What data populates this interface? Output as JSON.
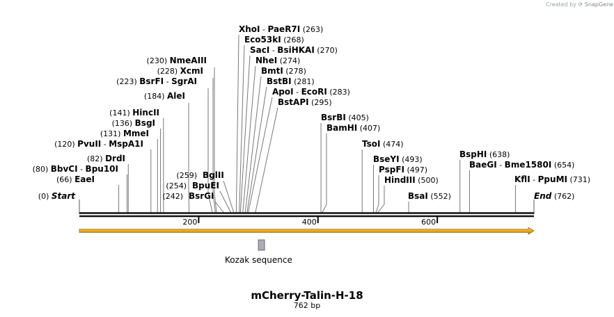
{
  "credit": {
    "prefix": "Created by",
    "brand": "SnapGene"
  },
  "construct": {
    "name": "mCherry-Talin-H-18",
    "size": "762 bp",
    "length": 762
  },
  "ends": {
    "start": {
      "name": "Start",
      "pos": "(0)"
    },
    "end": {
      "name": "End",
      "pos": "(762)"
    }
  },
  "ruler": {
    "ticks": [
      200,
      400,
      600
    ]
  },
  "feature": {
    "label": "Kozak sequence",
    "start": 300,
    "end": 310
  },
  "cds": {
    "start": 0,
    "end": 762,
    "color": "#f0b429"
  },
  "enzymes_left": [
    {
      "bp": 66,
      "pos": "(66)",
      "names": [
        "EaeI"
      ]
    },
    {
      "bp": 80,
      "pos": "(80)",
      "names": [
        "BbvCI",
        "Bpu10I"
      ]
    },
    {
      "bp": 82,
      "pos": "(82)",
      "names": [
        "DrdI"
      ]
    },
    {
      "bp": 120,
      "pos": "(120)",
      "names": [
        "PvuII",
        "MspA1I"
      ]
    },
    {
      "bp": 131,
      "pos": "(131)",
      "names": [
        "MmeI"
      ]
    },
    {
      "bp": 136,
      "pos": "(136)",
      "names": [
        "BsgI"
      ]
    },
    {
      "bp": 141,
      "pos": "(141)",
      "names": [
        "HincII"
      ]
    },
    {
      "bp": 184,
      "pos": "(184)",
      "names": [
        "AleI"
      ]
    },
    {
      "bp": 223,
      "pos": "(223)",
      "names": [
        "BsrFI",
        "SgrAI"
      ]
    },
    {
      "bp": 228,
      "pos": "(228)",
      "names": [
        "XcmI"
      ]
    },
    {
      "bp": 230,
      "pos": "(230)",
      "names": [
        "NmeAIII"
      ]
    }
  ],
  "enzymes_mid": [
    {
      "bp": 242,
      "pos": "(242)",
      "names": [
        "BsrGI"
      ]
    },
    {
      "bp": 254,
      "pos": "(254)",
      "names": [
        "BpuEI"
      ]
    },
    {
      "bp": 259,
      "pos": "(259)",
      "names": [
        "BglII"
      ]
    }
  ],
  "enzymes_stack": [
    {
      "bp": 263,
      "pos": "(263)",
      "names": [
        "XhoI",
        "PaeR7I"
      ]
    },
    {
      "bp": 268,
      "pos": "(268)",
      "names": [
        "Eco53kI"
      ]
    },
    {
      "bp": 270,
      "pos": "(270)",
      "names": [
        "SacI",
        "BsiHKAI"
      ]
    },
    {
      "bp": 274,
      "pos": "(274)",
      "names": [
        "NheI"
      ]
    },
    {
      "bp": 278,
      "pos": "(278)",
      "names": [
        "BmtI"
      ]
    },
    {
      "bp": 281,
      "pos": "(281)",
      "names": [
        "BstBI"
      ]
    },
    {
      "bp": 283,
      "pos": "(283)",
      "names": [
        "ApoI",
        "EcoRI"
      ]
    },
    {
      "bp": 295,
      "pos": "(295)",
      "names": [
        "BstAPI"
      ]
    }
  ],
  "enzymes_right": [
    {
      "bp": 405,
      "pos": "(405)",
      "names": [
        "BsrBI"
      ]
    },
    {
      "bp": 407,
      "pos": "(407)",
      "names": [
        "BamHI"
      ]
    },
    {
      "bp": 474,
      "pos": "(474)",
      "names": [
        "TsoI"
      ]
    },
    {
      "bp": 493,
      "pos": "(493)",
      "names": [
        "BseYI"
      ]
    },
    {
      "bp": 497,
      "pos": "(497)",
      "names": [
        "PspFI"
      ]
    },
    {
      "bp": 500,
      "pos": "(500)",
      "names": [
        "HindIII"
      ]
    },
    {
      "bp": 552,
      "pos": "(552)",
      "names": [
        "BsaI"
      ]
    },
    {
      "bp": 638,
      "pos": "(638)",
      "names": [
        "BspHI"
      ]
    },
    {
      "bp": 654,
      "pos": "(654)",
      "names": [
        "BaeGI",
        "Bme1580I"
      ]
    },
    {
      "bp": 731,
      "pos": "(731)",
      "names": [
        "KflI",
        "PpuMI"
      ]
    }
  ]
}
